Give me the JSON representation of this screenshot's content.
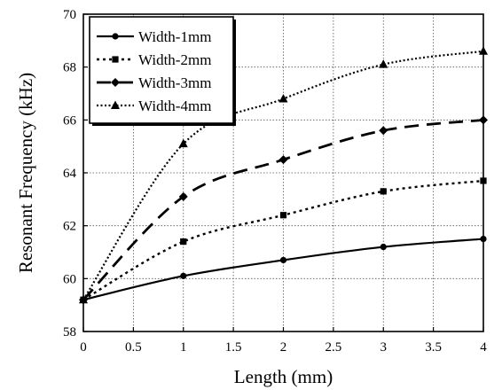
{
  "chart_data": {
    "type": "line",
    "title": "",
    "xlabel": "Length (mm)",
    "ylabel": "Resonant Frequency (kHz)",
    "xlim": [
      0,
      4
    ],
    "ylim": [
      58,
      70
    ],
    "x_ticks": [
      "0",
      "0.5",
      "1",
      "1.5",
      "2",
      "2.5",
      "3",
      "3.5",
      "4"
    ],
    "y_ticks": [
      "58",
      "60",
      "62",
      "64",
      "66",
      "68",
      "70"
    ],
    "grid": true,
    "legend_position": "top-left",
    "x": [
      0,
      1,
      2,
      3,
      4
    ],
    "series": [
      {
        "name": "Width-1mm",
        "values": [
          59.2,
          60.1,
          60.7,
          61.2,
          61.5
        ],
        "marker": "circle",
        "dash": "solid"
      },
      {
        "name": "Width-2mm",
        "values": [
          59.2,
          61.4,
          62.4,
          63.3,
          63.7
        ],
        "marker": "square",
        "dash": "dotted"
      },
      {
        "name": "Width-3mm",
        "values": [
          59.2,
          63.1,
          64.5,
          65.6,
          66.0
        ],
        "marker": "diamond",
        "dash": "long-dash"
      },
      {
        "name": "Width-4mm",
        "values": [
          59.2,
          65.1,
          66.8,
          68.1,
          68.6
        ],
        "marker": "triangle",
        "dash": "fine-dotted"
      }
    ]
  }
}
